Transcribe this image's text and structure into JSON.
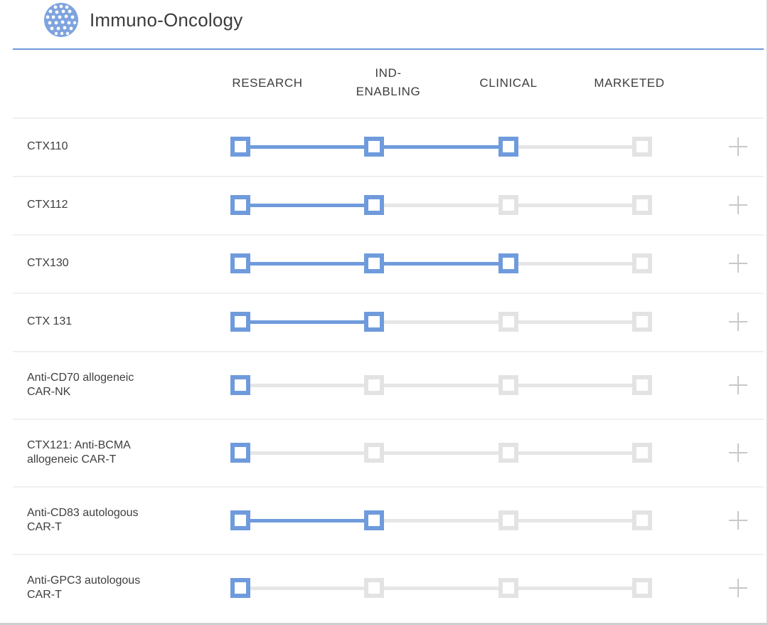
{
  "header": {
    "title": "Immuno-Oncology",
    "logo_icon": "cell-cluster-icon"
  },
  "stages": [
    "RESEARCH",
    "IND-\nENABLING",
    "CLINICAL",
    "MARKETED"
  ],
  "colors": {
    "accent": "#6f9bdc",
    "inactive": "#e3e3e3",
    "plus": "#c8c8c8"
  },
  "programs": [
    {
      "name": "CTX110",
      "progress_stage": 3,
      "expand_icon": "plus-icon"
    },
    {
      "name": "CTX112",
      "progress_stage": 2,
      "expand_icon": "plus-icon"
    },
    {
      "name": "CTX130",
      "progress_stage": 3,
      "expand_icon": "plus-icon"
    },
    {
      "name": "CTX 131",
      "progress_stage": 2,
      "expand_icon": "plus-icon"
    },
    {
      "name": "Anti-CD70 allogeneic\nCAR-NK",
      "progress_stage": 1,
      "expand_icon": "plus-icon"
    },
    {
      "name": "CTX121: Anti-BCMA\nallogeneic CAR-T",
      "progress_stage": 1,
      "expand_icon": "plus-icon"
    },
    {
      "name": "Anti-CD83 autologous\nCAR-T",
      "progress_stage": 2,
      "expand_icon": "plus-icon"
    },
    {
      "name": "Anti-GPC3 autologous\nCAR-T",
      "progress_stage": 1,
      "expand_icon": "plus-icon"
    }
  ]
}
